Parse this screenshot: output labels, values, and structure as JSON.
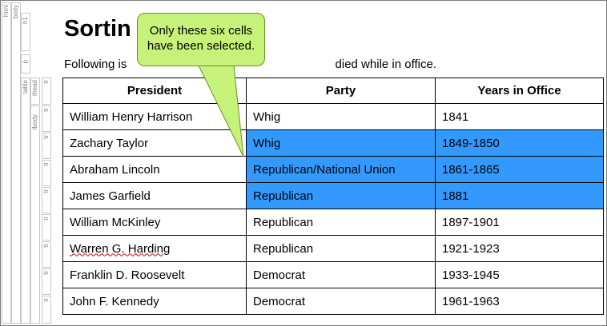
{
  "structure": {
    "labels": [
      "html",
      "body",
      "h1",
      "p",
      "table",
      "thead",
      "tbody",
      "tr",
      "tr",
      "tr",
      "tr",
      "tr",
      "tr",
      "tr",
      "tr",
      "tr"
    ]
  },
  "heading": {
    "visible_text": "Sortin"
  },
  "paragraph": {
    "left_text": "Following is ",
    "right_text": "died while in office."
  },
  "table": {
    "headers": [
      "President",
      "Party",
      "Years in Office"
    ],
    "rows": [
      {
        "president": "William Henry Harrison",
        "party": "Whig",
        "years": "1841"
      },
      {
        "president": "Zachary Taylor",
        "party": "Whig",
        "years": "1849-1850"
      },
      {
        "president": "Abraham Lincoln",
        "party": "Republican/National Union",
        "years": "1861-1865"
      },
      {
        "president": "James Garfield",
        "party": "Republican",
        "years": "1881"
      },
      {
        "president": "William McKinley",
        "party": "Republican",
        "years": "1897-1901"
      },
      {
        "president": "Warren G. Harding",
        "party": "Republican",
        "years": "1921-1923"
      },
      {
        "president": "Franklin D. Roosevelt",
        "party": "Democrat",
        "years": "1933-1945"
      },
      {
        "president": "John F. Kennedy",
        "party": "Democrat",
        "years": "1961-1963"
      }
    ],
    "selection_color": "#3399ff"
  },
  "callout": {
    "text_line1": "Only these six cells",
    "text_line2": "have been selected.",
    "fill": "#c6f27a",
    "stroke": "#6b8e23"
  }
}
